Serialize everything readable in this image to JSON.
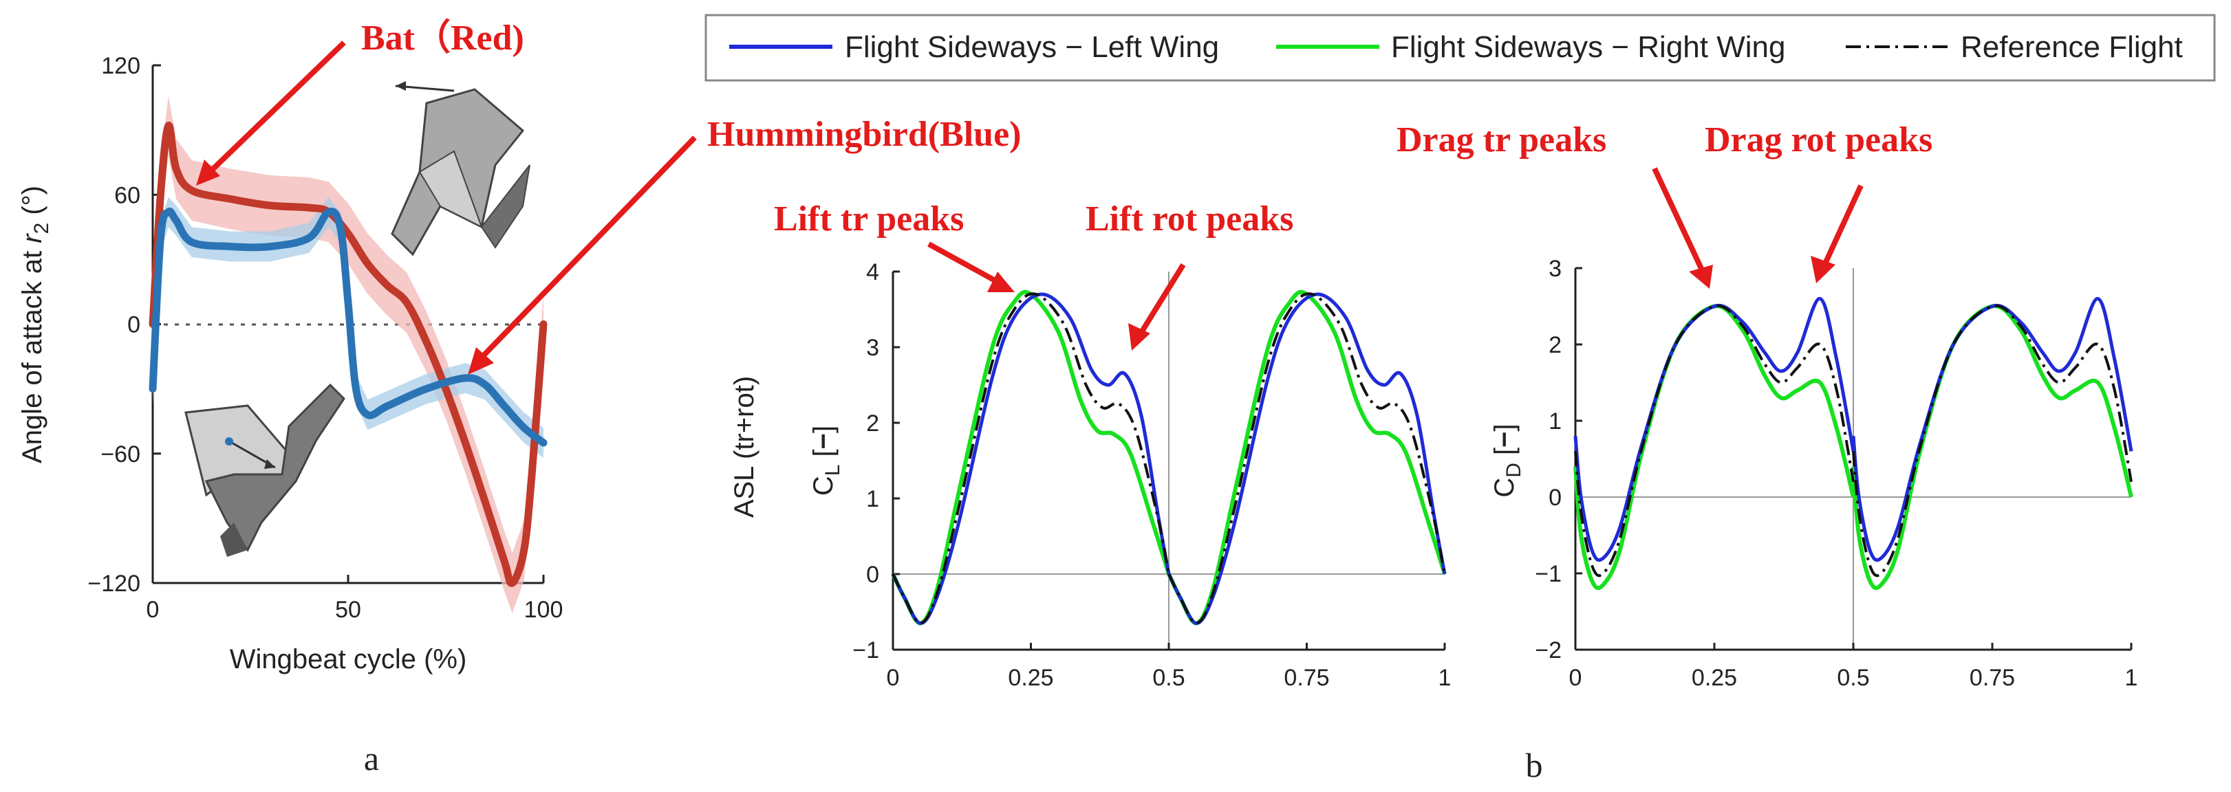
{
  "colors": {
    "bat": "#c0392b",
    "bat_band": "#f2b8b5",
    "hummingbird": "#2a74b5",
    "hummingbird_band": "#a9cde8",
    "blue": "#1f2bd6",
    "green": "#17e01e",
    "black": "#111111",
    "annotation": "#e41b1b"
  },
  "panel_a": {
    "label": "a",
    "annotations": {
      "bat": "Bat（Red)",
      "hummingbird": "Hummingbird(Blue)"
    }
  },
  "panel_b": {
    "label": "b",
    "row_label": "ASL (tr+rot)",
    "legend": {
      "blue": "Flight Sideways − Left Wing",
      "green": "Flight Sideways − Right Wing",
      "black": "Reference Flight"
    },
    "annotations": {
      "lift_tr": "Lift tr peaks",
      "lift_rot": "Lift rot peaks",
      "drag_tr": "Drag tr peaks",
      "drag_rot": "Drag rot peaks"
    }
  },
  "chart_data": [
    {
      "id": "angle_of_attack",
      "type": "line",
      "xlabel": "Wingbeat cycle (%)",
      "ylabel": "Angle of attack at r2 (°)",
      "xlim": [
        0,
        100
      ],
      "ylim": [
        -120,
        120
      ],
      "xticks": [
        "0",
        "50",
        "100"
      ],
      "yticks": [
        "−120",
        "−60",
        "0",
        "60",
        "120"
      ],
      "zero_line": "dotted",
      "series": [
        {
          "name": "Bat (Red)",
          "x": [
            0,
            2,
            4,
            6,
            10,
            20,
            30,
            40,
            45,
            50,
            55,
            60,
            65,
            70,
            75,
            80,
            85,
            90,
            92,
            95,
            97,
            100
          ],
          "y": [
            0,
            60,
            92,
            72,
            62,
            58,
            55,
            54,
            52,
            42,
            28,
            18,
            10,
            -8,
            -30,
            -55,
            -82,
            -110,
            -120,
            -105,
            -70,
            0
          ]
        },
        {
          "name": "Hummingbird (Blue)",
          "x": [
            0,
            2,
            4,
            6,
            10,
            20,
            30,
            40,
            45,
            48,
            50,
            52,
            55,
            60,
            70,
            80,
            85,
            90,
            95,
            100
          ],
          "y": [
            -30,
            40,
            52,
            48,
            38,
            36,
            36,
            40,
            52,
            45,
            10,
            -30,
            -42,
            -38,
            -30,
            -25,
            -28,
            -38,
            -48,
            -55
          ]
        }
      ]
    },
    {
      "id": "lift_coefficient",
      "type": "line",
      "ylabel": "C_L [−]",
      "xlim": [
        0,
        1
      ],
      "ylim": [
        -1,
        4
      ],
      "xticks": [
        "0",
        "0.25",
        "0.5",
        "0.75",
        "1"
      ],
      "yticks": [
        "−1",
        "0",
        "1",
        "2",
        "3",
        "4"
      ],
      "series": [
        {
          "name": "Flight Sideways − Left Wing",
          "x": [
            0,
            0.02,
            0.05,
            0.08,
            0.12,
            0.18,
            0.22,
            0.27,
            0.32,
            0.36,
            0.39,
            0.42,
            0.45,
            0.48,
            0.5
          ],
          "y": [
            0,
            -0.3,
            -0.65,
            -0.3,
            0.7,
            2.6,
            3.4,
            3.7,
            3.4,
            2.7,
            2.5,
            2.65,
            2.1,
            0.8,
            0
          ]
        },
        {
          "name": "Flight Sideways − Right Wing",
          "x": [
            0,
            0.02,
            0.05,
            0.08,
            0.12,
            0.18,
            0.22,
            0.25,
            0.3,
            0.34,
            0.37,
            0.4,
            0.43,
            0.47,
            0.5
          ],
          "y": [
            0,
            -0.3,
            -0.65,
            -0.2,
            1.1,
            3.0,
            3.6,
            3.7,
            3.2,
            2.3,
            1.9,
            1.85,
            1.6,
            0.7,
            0
          ]
        },
        {
          "name": "Reference Flight",
          "x": [
            0,
            0.02,
            0.05,
            0.08,
            0.12,
            0.18,
            0.22,
            0.26,
            0.31,
            0.35,
            0.38,
            0.41,
            0.44,
            0.48,
            0.5
          ],
          "y": [
            0,
            -0.3,
            -0.65,
            -0.25,
            0.9,
            2.8,
            3.5,
            3.7,
            3.3,
            2.5,
            2.2,
            2.25,
            1.9,
            0.75,
            0
          ]
        }
      ],
      "periodic": true
    },
    {
      "id": "drag_coefficient",
      "type": "line",
      "ylabel": "C_D [−]",
      "xlim": [
        0,
        1
      ],
      "ylim": [
        -2,
        3
      ],
      "xticks": [
        "0",
        "0.25",
        "0.5",
        "0.75",
        "1"
      ],
      "yticks": [
        "−2",
        "−1",
        "0",
        "1",
        "2",
        "3"
      ],
      "series": [
        {
          "name": "Flight Sideways − Left Wing",
          "x": [
            0,
            0.01,
            0.03,
            0.05,
            0.08,
            0.12,
            0.18,
            0.25,
            0.3,
            0.34,
            0.37,
            0.4,
            0.44,
            0.47,
            0.5
          ],
          "y": [
            0.8,
            0,
            -0.7,
            -0.8,
            -0.4,
            0.7,
            2.0,
            2.5,
            2.3,
            1.9,
            1.65,
            1.9,
            2.6,
            1.8,
            0.6
          ]
        },
        {
          "name": "Flight Sideways − Right Wing",
          "x": [
            0,
            0.01,
            0.03,
            0.05,
            0.08,
            0.12,
            0.18,
            0.25,
            0.3,
            0.34,
            0.37,
            0.4,
            0.44,
            0.47,
            0.5
          ],
          "y": [
            0.4,
            -0.5,
            -1.1,
            -1.15,
            -0.7,
            0.6,
            2.0,
            2.5,
            2.2,
            1.6,
            1.3,
            1.4,
            1.5,
            0.9,
            0
          ]
        },
        {
          "name": "Reference Flight",
          "x": [
            0,
            0.01,
            0.03,
            0.05,
            0.08,
            0.12,
            0.18,
            0.25,
            0.3,
            0.34,
            0.37,
            0.4,
            0.44,
            0.47,
            0.5
          ],
          "y": [
            0.6,
            -0.2,
            -0.9,
            -1.0,
            -0.55,
            0.65,
            2.0,
            2.5,
            2.25,
            1.75,
            1.5,
            1.7,
            2.0,
            1.4,
            0.2
          ]
        }
      ],
      "periodic": true
    }
  ]
}
